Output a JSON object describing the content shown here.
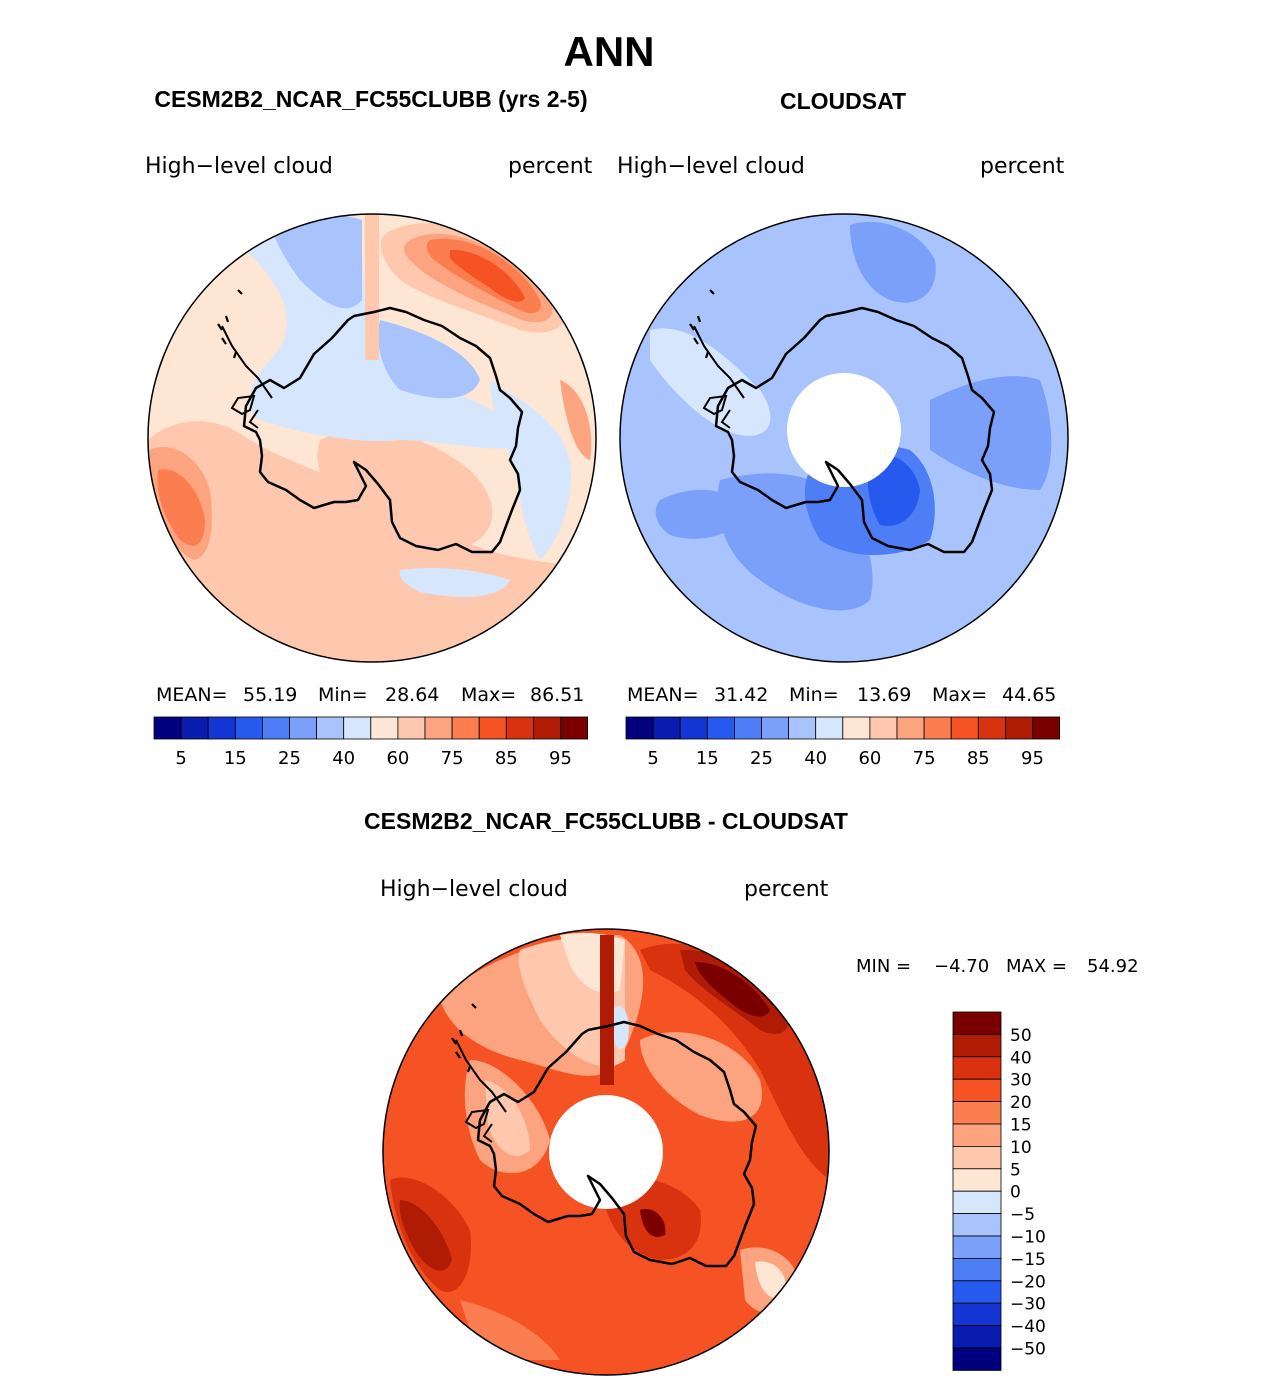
{
  "figure": {
    "title": "ANN",
    "colors": {
      "n6": "#00007f",
      "n5": "#0a1bb0",
      "n4": "#1436d4",
      "n3": "#2659ee",
      "n2": "#4d7ef5",
      "n1": "#7aa0fa",
      "n0": "#a9c4fd",
      "nz": "#d6e6fd",
      "p0": "#fde6d4",
      "p1": "#fdc8ad",
      "p2": "#fca47f",
      "p3": "#fb7e50",
      "p4": "#f55324",
      "p5": "#d8330e",
      "p6": "#b01b06",
      "p7": "#7a0000",
      "coast": "#000000",
      "background": "#ffffff"
    }
  },
  "panels": [
    {
      "id": "model",
      "header": "CESM2B2_NCAR_FC55CLUBB (yrs 2-5)",
      "variable": "High−level cloud",
      "units": "percent",
      "stats": {
        "mean_label": "MEAN=",
        "mean": "55.19",
        "min_label": "Min=",
        "min": "28.64",
        "max_label": "Max=",
        "max": "86.51"
      },
      "colorbar_ticks": [
        "5",
        "15",
        "25",
        "40",
        "60",
        "75",
        "85",
        "95"
      ]
    },
    {
      "id": "obs",
      "header": "CLOUDSAT",
      "variable": "High−level cloud",
      "units": "percent",
      "stats": {
        "mean_label": "MEAN=",
        "mean": "31.42",
        "min_label": "Min=",
        "min": "13.69",
        "max_label": "Max=",
        "max": "44.65"
      },
      "colorbar_ticks": [
        "5",
        "15",
        "25",
        "40",
        "60",
        "75",
        "85",
        "95"
      ]
    },
    {
      "id": "diff",
      "header": "CESM2B2_NCAR_FC55CLUBB - CLOUDSAT",
      "variable": "High−level cloud",
      "units": "percent",
      "stats": {
        "min_label": "MIN =",
        "min": "−4.70",
        "max_label": "MAX =",
        "max": "54.92"
      },
      "colorbar_ticks": [
        "50",
        "40",
        "30",
        "20",
        "15",
        "10",
        "5",
        "0",
        "−5",
        "−10",
        "−15",
        "−20",
        "−30",
        "−40",
        "−50"
      ]
    }
  ]
}
